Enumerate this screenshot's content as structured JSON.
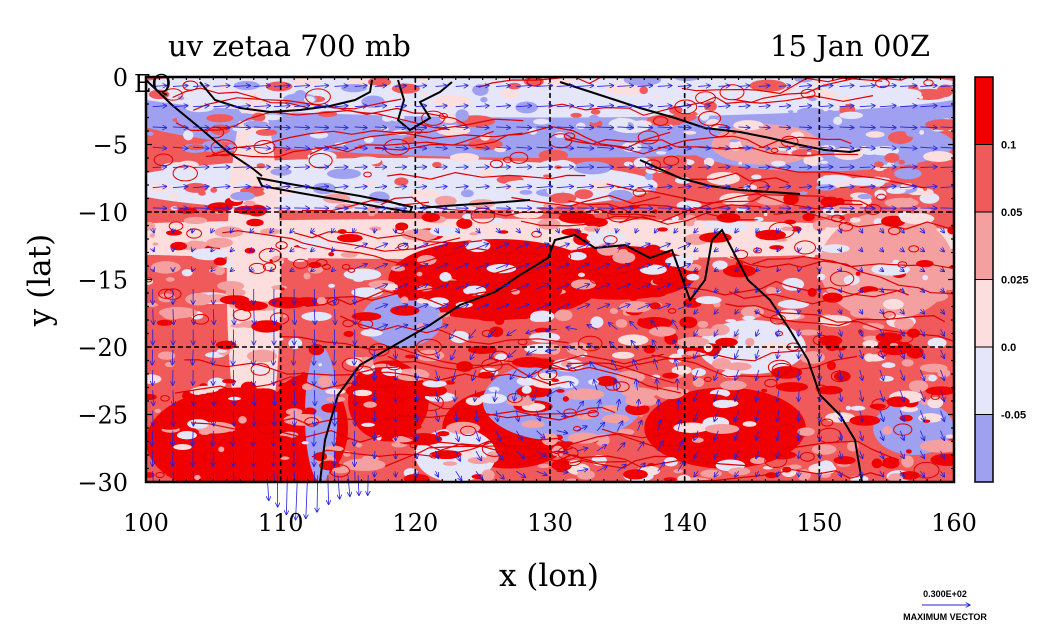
{
  "chart_data": {
    "type": "heatmap",
    "title_left": "uv zetaa 700 mb",
    "title_right": "15 Jan 00Z",
    "xlabel": "x (lon)",
    "ylabel": "y (lat)",
    "xlim": [
      100,
      160
    ],
    "ylim": [
      -30,
      0
    ],
    "x_ticks": [
      100,
      110,
      120,
      130,
      140,
      150,
      160
    ],
    "y_ticks": [
      0,
      -5,
      -10,
      -15,
      -20,
      -25,
      -30
    ],
    "y_tick_labels": [
      "0",
      "−5",
      "−10",
      "−15",
      "−20",
      "−25",
      "−30"
    ],
    "origin_label": "EQ",
    "grid": {
      "x": [
        110,
        120,
        130,
        140,
        150
      ],
      "y": [
        -10,
        -20
      ],
      "style": "dashed"
    },
    "colorbar": {
      "labels": [
        "0.1",
        "0.05",
        "0.025",
        "0.0",
        "-0.05"
      ],
      "bands": [
        {
          "level": "> 0.1",
          "color": "#f00000"
        },
        {
          "level": "0.05 to 0.1",
          "color": "#f05a5a"
        },
        {
          "level": "0.025 to 0.05",
          "color": "#f5a0a0"
        },
        {
          "level": "0.0 to 0.025",
          "color": "#fcdede"
        },
        {
          "level": "-0.05 to 0.0",
          "color": "#e6e6fa"
        },
        {
          "level": "< -0.05",
          "color": "#a0a0f0"
        }
      ]
    },
    "vector": {
      "label_value": "0.300E+02",
      "label": "MAXIMUM VECTOR",
      "color": "#2020e0"
    },
    "coastline_color": "#000000",
    "contour_color": "#e00000"
  }
}
